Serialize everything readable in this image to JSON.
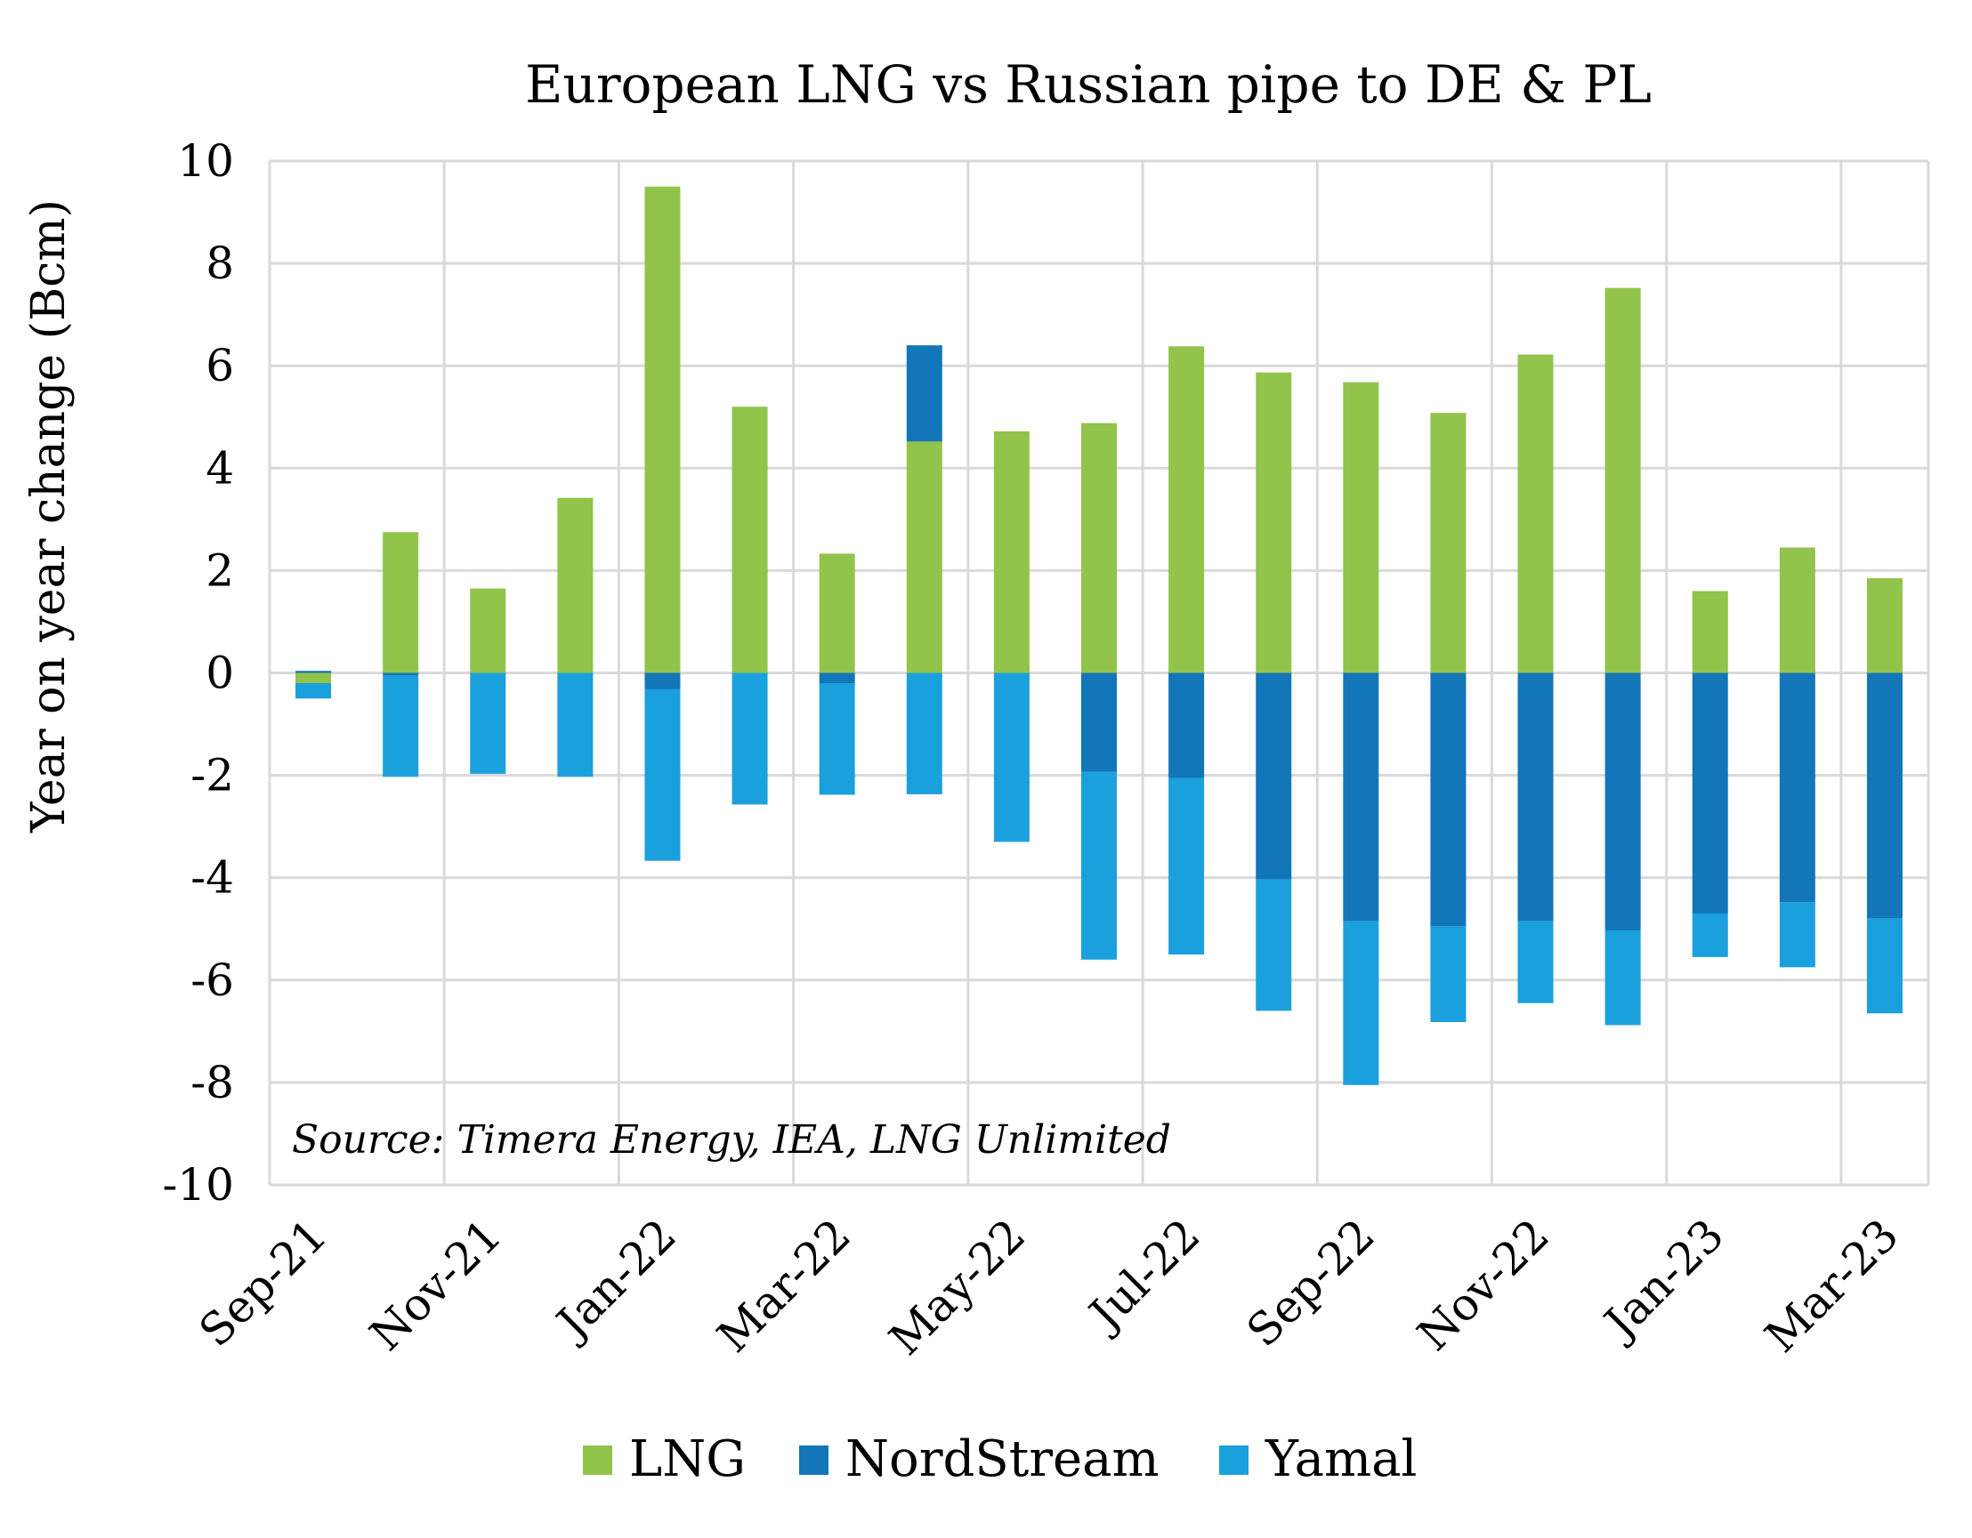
{
  "chart_data": {
    "type": "bar",
    "stacked": true,
    "title": "European LNG vs Russian pipe to DE & PL",
    "ylabel": "Year on year change (Bcm)",
    "xlabel": "",
    "ylim": [
      -10,
      10
    ],
    "yticks": [
      10,
      8,
      6,
      4,
      2,
      0,
      -2,
      -4,
      -6,
      -8,
      -10
    ],
    "grid": true,
    "legend": "bottom",
    "annotation": "Source: Timera Energy, IEA, LNG Unlimited",
    "categories": [
      "Sep-21",
      "Oct-21",
      "Nov-21",
      "Dec-21",
      "Jan-22",
      "Feb-22",
      "Mar-22",
      "Apr-22",
      "May-22",
      "Jun-22",
      "Jul-22",
      "Aug-22",
      "Sep-22",
      "Oct-22",
      "Nov-22",
      "Dec-22",
      "Jan-23",
      "Feb-23",
      "Mar-23"
    ],
    "xtick_labels": [
      "Sep-21",
      "Nov-21",
      "Jan-22",
      "Mar-22",
      "May-22",
      "Jul-22",
      "Sep-22",
      "Nov-22",
      "Jan-23",
      "Mar-23"
    ],
    "series": [
      {
        "name": "LNG",
        "color": "#92c34b",
        "values": [
          -0.2,
          2.75,
          1.65,
          3.42,
          9.5,
          5.2,
          2.33,
          4.52,
          4.72,
          4.88,
          6.38,
          5.87,
          5.68,
          5.08,
          6.22,
          7.52,
          1.6,
          2.45,
          1.85
        ]
      },
      {
        "name": "NordStream",
        "color": "#1276b9",
        "values": [
          0.04,
          -0.05,
          0,
          0,
          -0.32,
          0,
          -0.2,
          1.88,
          0,
          -1.93,
          -2.05,
          -4.03,
          -4.85,
          -4.95,
          -4.85,
          -5.03,
          -4.7,
          -4.48,
          -4.8
        ]
      },
      {
        "name": "Yamal",
        "color": "#1ba0de",
        "values": [
          -0.3,
          -1.98,
          -1.97,
          -2.03,
          -3.35,
          -2.57,
          -2.18,
          -2.37,
          -3.3,
          -3.67,
          -3.45,
          -2.57,
          -3.2,
          -1.87,
          -1.6,
          -1.85,
          -0.85,
          -1.27,
          -1.85
        ]
      }
    ]
  }
}
